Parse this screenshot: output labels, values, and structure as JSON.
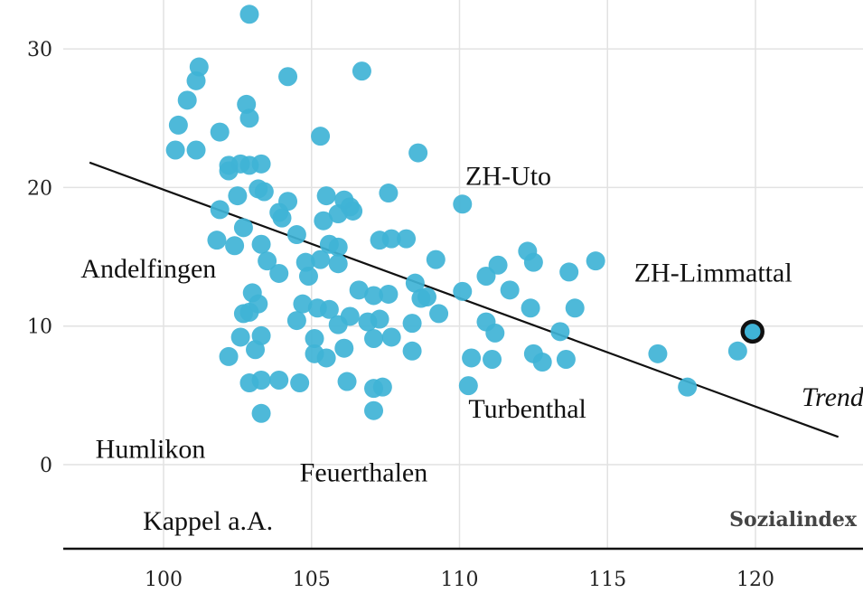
{
  "chart_data": {
    "type": "scatter",
    "title": "",
    "xlabel": "Sozialindex",
    "ylabel": "",
    "xlim": [
      97,
      124
    ],
    "ylim": [
      -6,
      33.5
    ],
    "x_ticks": [
      100,
      105,
      110,
      115,
      120
    ],
    "y_ticks": [
      0,
      10,
      20,
      30
    ],
    "grid": true,
    "point_color": "#3fb3d6",
    "highlight_color": "#3fb3d6",
    "trend": {
      "label": "Trend",
      "start": [
        97.5,
        21.8
      ],
      "end": [
        122.8,
        2.0
      ]
    },
    "highlight": {
      "name": "ZH-Limmattal",
      "x": 119.9,
      "y": 9.6
    },
    "annotations": [
      {
        "text": "ZH-Uto",
        "x": 110.2,
        "y": 20.2
      },
      {
        "text": "Andelfingen",
        "x": 97.2,
        "y": 13.5
      },
      {
        "text": "ZH-Limmattal",
        "x": 115.9,
        "y": 13.2
      },
      {
        "text": "Turbenthal",
        "x": 110.3,
        "y": 3.4
      },
      {
        "text": "Humlikon",
        "x": 97.7,
        "y": 0.5
      },
      {
        "text": "Feuerthalen",
        "x": 104.6,
        "y": -1.2
      },
      {
        "text": "Kappel a.A.",
        "x": 99.3,
        "y": -4.7
      }
    ],
    "points": [
      [
        102.9,
        32.5
      ],
      [
        101.2,
        28.7
      ],
      [
        106.7,
        28.4
      ],
      [
        104.2,
        28.0
      ],
      [
        101.1,
        27.7
      ],
      [
        100.8,
        26.3
      ],
      [
        102.8,
        26.0
      ],
      [
        102.9,
        25.0
      ],
      [
        100.5,
        24.5
      ],
      [
        101.9,
        24.0
      ],
      [
        105.3,
        23.7
      ],
      [
        100.4,
        22.7
      ],
      [
        101.1,
        22.7
      ],
      [
        108.6,
        22.5
      ],
      [
        102.2,
        21.6
      ],
      [
        102.2,
        21.2
      ],
      [
        102.6,
        21.7
      ],
      [
        102.9,
        21.6
      ],
      [
        103.3,
        21.7
      ],
      [
        103.2,
        19.9
      ],
      [
        103.4,
        19.7
      ],
      [
        102.5,
        19.4
      ],
      [
        104.2,
        19.0
      ],
      [
        105.5,
        19.4
      ],
      [
        106.1,
        19.1
      ],
      [
        106.3,
        18.6
      ],
      [
        106.4,
        18.3
      ],
      [
        105.9,
        18.1
      ],
      [
        103.9,
        18.2
      ],
      [
        104.0,
        17.8
      ],
      [
        105.4,
        17.6
      ],
      [
        107.6,
        19.6
      ],
      [
        110.1,
        18.8
      ],
      [
        101.9,
        18.4
      ],
      [
        102.7,
        17.1
      ],
      [
        104.5,
        16.6
      ],
      [
        101.8,
        16.2
      ],
      [
        102.4,
        15.8
      ],
      [
        103.3,
        15.9
      ],
      [
        105.6,
        15.9
      ],
      [
        105.9,
        15.7
      ],
      [
        107.3,
        16.2
      ],
      [
        107.7,
        16.3
      ],
      [
        108.2,
        16.3
      ],
      [
        103.5,
        14.7
      ],
      [
        104.8,
        14.6
      ],
      [
        105.3,
        14.8
      ],
      [
        105.9,
        14.5
      ],
      [
        103.9,
        13.8
      ],
      [
        104.9,
        13.6
      ],
      [
        106.6,
        12.6
      ],
      [
        107.1,
        12.2
      ],
      [
        107.6,
        12.3
      ],
      [
        108.5,
        13.1
      ],
      [
        108.7,
        12.0
      ],
      [
        109.2,
        14.8
      ],
      [
        108.9,
        12.1
      ],
      [
        110.1,
        12.5
      ],
      [
        110.9,
        13.6
      ],
      [
        111.3,
        14.4
      ],
      [
        111.7,
        12.6
      ],
      [
        112.3,
        15.4
      ],
      [
        112.5,
        14.6
      ],
      [
        113.7,
        13.9
      ],
      [
        114.6,
        14.7
      ],
      [
        113.9,
        11.3
      ],
      [
        112.4,
        11.3
      ],
      [
        103.0,
        12.4
      ],
      [
        103.2,
        11.6
      ],
      [
        102.9,
        11.0
      ],
      [
        102.7,
        10.9
      ],
      [
        104.7,
        11.6
      ],
      [
        105.2,
        11.3
      ],
      [
        105.6,
        11.2
      ],
      [
        106.3,
        10.7
      ],
      [
        106.9,
        10.3
      ],
      [
        107.3,
        10.5
      ],
      [
        108.4,
        10.2
      ],
      [
        109.3,
        10.9
      ],
      [
        104.5,
        10.4
      ],
      [
        105.9,
        10.1
      ],
      [
        110.9,
        10.3
      ],
      [
        111.2,
        9.5
      ],
      [
        102.6,
        9.2
      ],
      [
        103.3,
        9.3
      ],
      [
        103.1,
        8.3
      ],
      [
        105.1,
        9.1
      ],
      [
        107.1,
        9.1
      ],
      [
        107.7,
        9.2
      ],
      [
        108.4,
        8.2
      ],
      [
        102.2,
        7.8
      ],
      [
        105.1,
        8.0
      ],
      [
        105.5,
        7.7
      ],
      [
        106.1,
        8.4
      ],
      [
        110.4,
        7.7
      ],
      [
        111.1,
        7.6
      ],
      [
        112.5,
        8.0
      ],
      [
        112.8,
        7.4
      ],
      [
        113.6,
        7.6
      ],
      [
        113.4,
        9.6
      ],
      [
        116.7,
        8.0
      ],
      [
        119.4,
        8.2
      ],
      [
        117.7,
        5.6
      ],
      [
        102.9,
        5.9
      ],
      [
        103.3,
        6.1
      ],
      [
        103.9,
        6.1
      ],
      [
        104.6,
        5.9
      ],
      [
        106.2,
        6.0
      ],
      [
        107.1,
        5.5
      ],
      [
        107.4,
        5.6
      ],
      [
        107.1,
        3.9
      ],
      [
        103.3,
        3.7
      ],
      [
        110.3,
        5.7
      ]
    ]
  }
}
